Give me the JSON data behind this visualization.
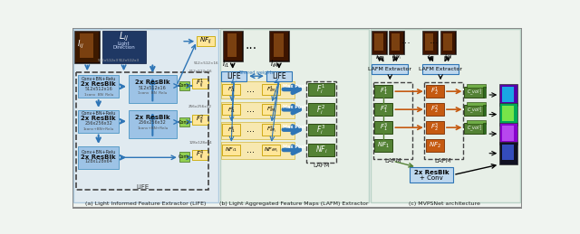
{
  "bg_color": "#f0f4f0",
  "panel_a_bg": "#d6e4f0",
  "panel_b_bg": "#e8f0e8",
  "panel_c_bg": "#e8f0e8",
  "blue_block": "#9dc3e6",
  "light_blue": "#bdd7ee",
  "yellow": "#ffe699",
  "green_dark": "#375623",
  "green_med": "#548235",
  "green_light": "#70ad47",
  "orange": "#c55a11",
  "navy": "#1f3864",
  "arrow_blue": "#2e75b6",
  "arrow_orange": "#c55a11",
  "conv_green": "#92d050",
  "panel_a_title": "(a) Light Informed Feature Extractor (LIFE)",
  "panel_b_title": "(b) Light Aggregated Feature Maps (LAFM) Extractor",
  "panel_c_title": "(c) MVPSNet architecture"
}
